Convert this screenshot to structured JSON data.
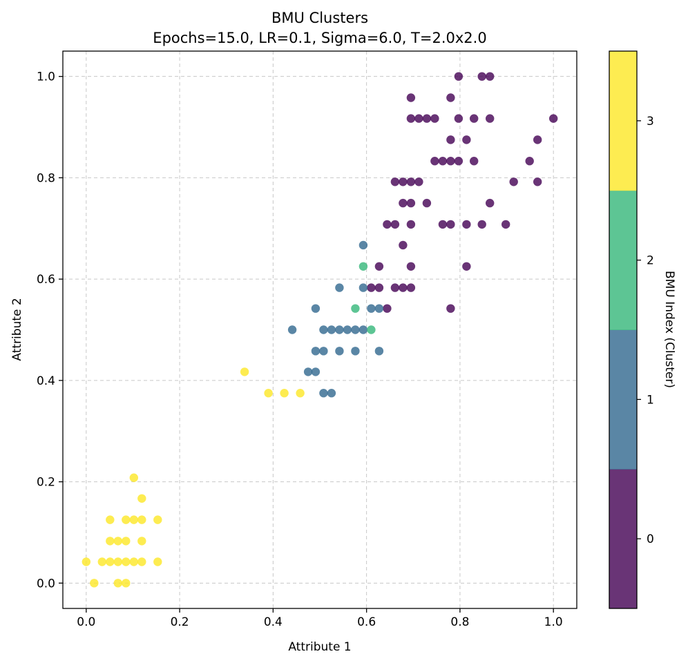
{
  "chart_data": {
    "type": "scatter",
    "title": "BMU Clusters",
    "subtitle": "Epochs=15.0, LR=0.1, Sigma=6.0, T=2.0x2.0",
    "xlabel": "Attribute 1",
    "ylabel": "Attribute 2",
    "xlim": [
      -0.05,
      1.05
    ],
    "ylim": [
      -0.05,
      1.05
    ],
    "xticks": [
      "0.0",
      "0.2",
      "0.4",
      "0.6",
      "0.8",
      "1.0"
    ],
    "yticks": [
      "0.0",
      "0.2",
      "0.4",
      "0.6",
      "0.8",
      "1.0"
    ],
    "grid": true,
    "colorbar": {
      "label": "BMU Index (Cluster)",
      "ticks": [
        "0",
        "1",
        "2",
        "3"
      ],
      "colors": [
        "#440154",
        "#31688e",
        "#35b779",
        "#fde725"
      ]
    },
    "series": [
      {
        "cluster": 0,
        "color": "#440154",
        "points": [
          [
            0.797,
            1.0
          ],
          [
            0.847,
            1.0
          ],
          [
            0.864,
            1.0
          ],
          [
            0.695,
            0.958
          ],
          [
            0.78,
            0.958
          ],
          [
            0.695,
            0.917
          ],
          [
            0.712,
            0.917
          ],
          [
            0.729,
            0.917
          ],
          [
            0.746,
            0.917
          ],
          [
            0.797,
            0.917
          ],
          [
            0.83,
            0.917
          ],
          [
            0.864,
            0.917
          ],
          [
            1.0,
            0.917
          ],
          [
            0.78,
            0.875
          ],
          [
            0.814,
            0.875
          ],
          [
            0.966,
            0.875
          ],
          [
            0.746,
            0.833
          ],
          [
            0.763,
            0.833
          ],
          [
            0.78,
            0.833
          ],
          [
            0.797,
            0.833
          ],
          [
            0.83,
            0.833
          ],
          [
            0.949,
            0.833
          ],
          [
            0.661,
            0.792
          ],
          [
            0.678,
            0.792
          ],
          [
            0.695,
            0.792
          ],
          [
            0.712,
            0.792
          ],
          [
            0.915,
            0.792
          ],
          [
            0.966,
            0.792
          ],
          [
            0.678,
            0.75
          ],
          [
            0.695,
            0.75
          ],
          [
            0.729,
            0.75
          ],
          [
            0.864,
            0.75
          ],
          [
            0.644,
            0.708
          ],
          [
            0.661,
            0.708
          ],
          [
            0.695,
            0.708
          ],
          [
            0.763,
            0.708
          ],
          [
            0.78,
            0.708
          ],
          [
            0.814,
            0.708
          ],
          [
            0.847,
            0.708
          ],
          [
            0.898,
            0.708
          ],
          [
            0.678,
            0.667
          ],
          [
            0.627,
            0.625
          ],
          [
            0.695,
            0.625
          ],
          [
            0.814,
            0.625
          ],
          [
            0.61,
            0.583
          ],
          [
            0.627,
            0.583
          ],
          [
            0.661,
            0.583
          ],
          [
            0.678,
            0.583
          ],
          [
            0.695,
            0.583
          ],
          [
            0.644,
            0.542
          ],
          [
            0.78,
            0.542
          ]
        ]
      },
      {
        "cluster": 1,
        "color": "#31688e",
        "points": [
          [
            0.593,
            0.667
          ],
          [
            0.542,
            0.583
          ],
          [
            0.593,
            0.583
          ],
          [
            0.491,
            0.542
          ],
          [
            0.61,
            0.542
          ],
          [
            0.627,
            0.542
          ],
          [
            0.441,
            0.5
          ],
          [
            0.508,
            0.5
          ],
          [
            0.525,
            0.5
          ],
          [
            0.542,
            0.5
          ],
          [
            0.559,
            0.5
          ],
          [
            0.576,
            0.5
          ],
          [
            0.593,
            0.5
          ],
          [
            0.491,
            0.458
          ],
          [
            0.508,
            0.458
          ],
          [
            0.542,
            0.458
          ],
          [
            0.576,
            0.458
          ],
          [
            0.627,
            0.458
          ],
          [
            0.475,
            0.417
          ],
          [
            0.491,
            0.417
          ],
          [
            0.508,
            0.375
          ],
          [
            0.525,
            0.375
          ]
        ]
      },
      {
        "cluster": 2,
        "color": "#35b779",
        "points": [
          [
            0.593,
            0.625
          ],
          [
            0.576,
            0.542
          ],
          [
            0.61,
            0.5
          ]
        ]
      },
      {
        "cluster": 3,
        "color": "#fde725",
        "points": [
          [
            0.339,
            0.417
          ],
          [
            0.39,
            0.375
          ],
          [
            0.424,
            0.375
          ],
          [
            0.458,
            0.375
          ],
          [
            0.102,
            0.208
          ],
          [
            0.119,
            0.167
          ],
          [
            0.051,
            0.125
          ],
          [
            0.085,
            0.125
          ],
          [
            0.102,
            0.125
          ],
          [
            0.119,
            0.125
          ],
          [
            0.153,
            0.125
          ],
          [
            0.051,
            0.083
          ],
          [
            0.068,
            0.083
          ],
          [
            0.085,
            0.083
          ],
          [
            0.119,
            0.083
          ],
          [
            0.0,
            0.042
          ],
          [
            0.034,
            0.042
          ],
          [
            0.051,
            0.042
          ],
          [
            0.068,
            0.042
          ],
          [
            0.085,
            0.042
          ],
          [
            0.102,
            0.042
          ],
          [
            0.119,
            0.042
          ],
          [
            0.153,
            0.042
          ],
          [
            0.017,
            0.0
          ],
          [
            0.068,
            0.0
          ],
          [
            0.085,
            0.0
          ]
        ]
      }
    ]
  }
}
